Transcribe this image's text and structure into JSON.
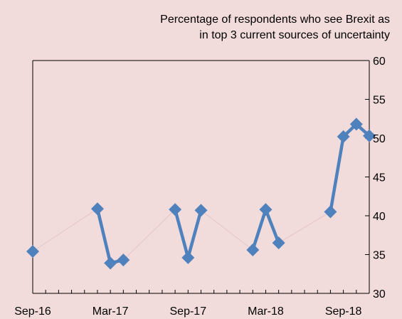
{
  "chart_data": {
    "type": "line",
    "title_lines": [
      "Percentage of respondents who see Brexit as",
      "in top 3 current sources of uncertainty"
    ],
    "xlabel": "",
    "ylabel": "",
    "y_axis_side": "right",
    "ylim": [
      30,
      60
    ],
    "yticks": [
      30,
      35,
      40,
      45,
      50,
      55,
      60
    ],
    "x_tick_labels": [
      "Sep-16",
      "Mar-17",
      "Sep-17",
      "Mar-18",
      "Sep-18"
    ],
    "x_axis_range": [
      "2016-09",
      "2018-11"
    ],
    "grid": false,
    "legend": "none",
    "colors": {
      "background": "#f2dcdb",
      "series": "#4f81bd",
      "connector": "#e6c4c8",
      "axis": "#000000"
    },
    "series": [
      {
        "marker": "diamond",
        "points": [
          {
            "x": "2016-09",
            "y": 35.4
          },
          {
            "x": "2017-02",
            "y": 40.9
          },
          {
            "x": "2017-03",
            "y": 33.9
          },
          {
            "x": "2017-04",
            "y": 34.3
          },
          {
            "x": "2017-08",
            "y": 40.8
          },
          {
            "x": "2017-09",
            "y": 34.6
          },
          {
            "x": "2017-10",
            "y": 40.7
          },
          {
            "x": "2018-02",
            "y": 35.6
          },
          {
            "x": "2018-03",
            "y": 40.8
          },
          {
            "x": "2018-04",
            "y": 36.5
          },
          {
            "x": "2018-08",
            "y": 40.5
          },
          {
            "x": "2018-09",
            "y": 50.2
          },
          {
            "x": "2018-10",
            "y": 51.8
          },
          {
            "x": "2018-11",
            "y": 50.3
          }
        ],
        "segments": [
          {
            "from": "2016-09",
            "to": "2017-02",
            "style": "connector"
          },
          {
            "from": "2017-02",
            "to": "2017-03",
            "style": "solid"
          },
          {
            "from": "2017-03",
            "to": "2017-04",
            "style": "solid"
          },
          {
            "from": "2017-04",
            "to": "2017-08",
            "style": "connector"
          },
          {
            "from": "2017-08",
            "to": "2017-09",
            "style": "solid"
          },
          {
            "from": "2017-09",
            "to": "2017-10",
            "style": "solid"
          },
          {
            "from": "2017-10",
            "to": "2018-02",
            "style": "connector"
          },
          {
            "from": "2018-02",
            "to": "2018-03",
            "style": "solid"
          },
          {
            "from": "2018-03",
            "to": "2018-04",
            "style": "solid"
          },
          {
            "from": "2018-04",
            "to": "2018-08",
            "style": "connector"
          },
          {
            "from": "2018-08",
            "to": "2018-09",
            "style": "solid"
          },
          {
            "from": "2018-09",
            "to": "2018-10",
            "style": "solid"
          },
          {
            "from": "2018-10",
            "to": "2018-11",
            "style": "solid"
          }
        ]
      }
    ]
  }
}
